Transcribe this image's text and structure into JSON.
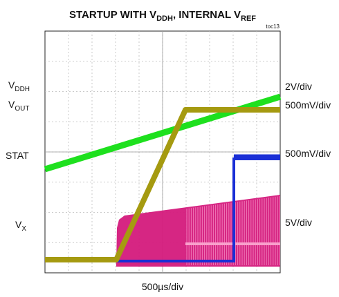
{
  "title": {
    "parts": [
      "STARTUP WITH V",
      "DDH",
      ", INTERNAL V",
      "REF"
    ]
  },
  "figure_id": "toc13",
  "left_labels": [
    {
      "main": "V",
      "sub": "DDH"
    },
    {
      "main": "V",
      "sub": "OUT"
    },
    {
      "main": "STAT"
    },
    {
      "main": "V",
      "sub": "X"
    }
  ],
  "right_labels": [
    "2V/div",
    "500mV/div",
    "500mV/div",
    "5V/div"
  ],
  "x_label": "500µs/div"
}
